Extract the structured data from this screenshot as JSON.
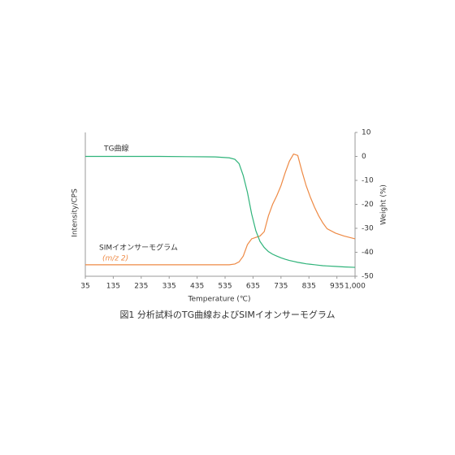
{
  "chart_data": {
    "type": "line",
    "caption": "図1 分析試料のTG曲線およびSIMイオンサーモグラム",
    "x_label": "Temperature (℃)",
    "y_label": "Intensity/CPS",
    "y2_label": "Weight (%)",
    "annotation": "(m/z 2)",
    "x": [
      35,
      100,
      200,
      300,
      400,
      500,
      550,
      570,
      585,
      600,
      615,
      630,
      645,
      660,
      675,
      690,
      705,
      720,
      735,
      750,
      765,
      780,
      795,
      810,
      825,
      840,
      855,
      870,
      885,
      900,
      930,
      960,
      1000
    ],
    "xlim": [
      35,
      1000
    ],
    "xticks": [
      35,
      135,
      235,
      335,
      435,
      535,
      635,
      735,
      835,
      935,
      {
        "value": 1000,
        "label": "1,000"
      }
    ],
    "ylim": [
      0,
      100
    ],
    "y2lim": [
      -50,
      10
    ],
    "y2ticks": [
      10,
      0,
      -10,
      -20,
      -30,
      -40,
      -50
    ],
    "series": [
      {
        "name": "SIMイオンサーモグラム",
        "color": "#ee8a45",
        "axis": "y",
        "values": [
          8,
          8,
          8,
          8,
          8,
          8,
          8,
          8.5,
          10,
          14,
          22,
          26,
          27,
          28,
          31,
          42,
          50,
          56,
          63,
          72,
          80,
          85,
          84,
          73,
          63,
          55,
          48,
          42,
          37,
          33,
          30,
          28,
          26
        ]
      },
      {
        "name": "TG曲線",
        "color": "#2fb37a",
        "axis": "y2",
        "values": [
          0,
          0,
          0,
          0,
          -0.1,
          -0.2,
          -0.6,
          -1.2,
          -3,
          -8,
          -15,
          -24,
          -31,
          -35.5,
          -38,
          -39.7,
          -40.8,
          -41.6,
          -42.3,
          -42.9,
          -43.4,
          -43.8,
          -44.2,
          -44.5,
          -44.8,
          -45,
          -45.2,
          -45.4,
          -45.6,
          -45.7,
          -45.9,
          -46.1,
          -46.3
        ]
      }
    ]
  }
}
